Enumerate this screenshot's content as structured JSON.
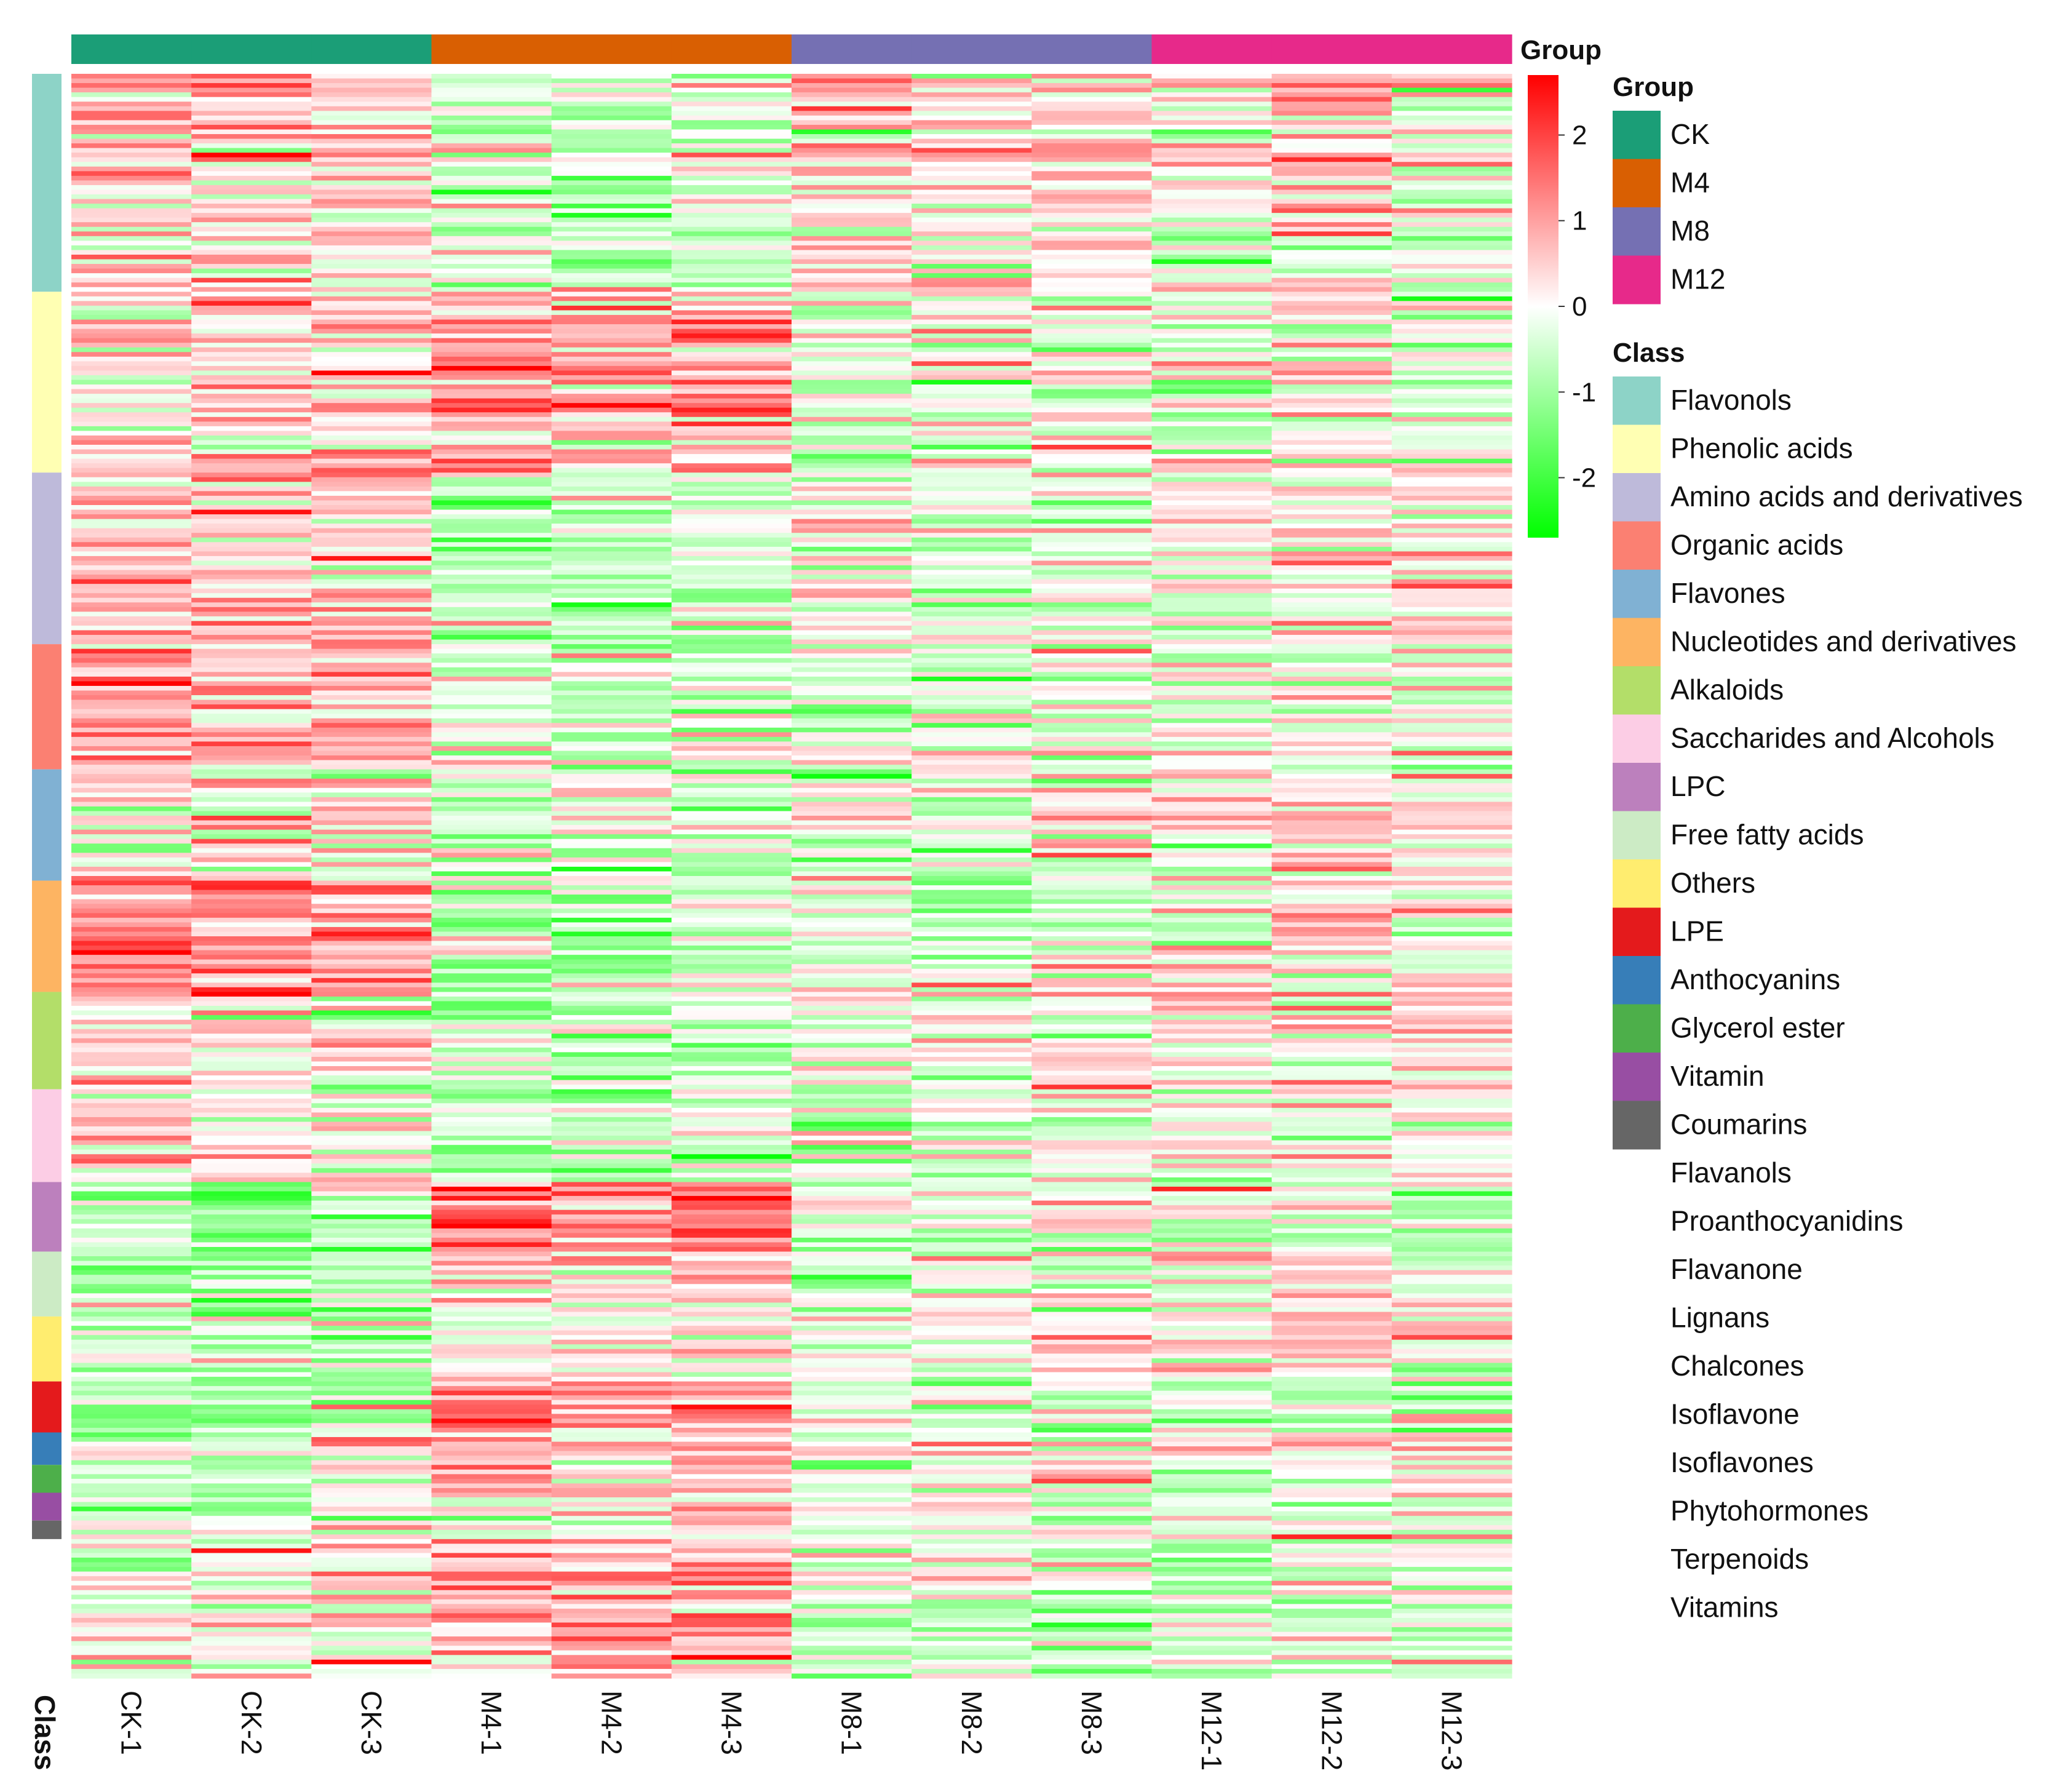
{
  "chart_data": {
    "type": "heatmap",
    "title": "",
    "xlabel": "",
    "ylabel": "",
    "samples": [
      "CK-1",
      "CK-2",
      "CK-3",
      "M4-1",
      "M4-2",
      "M4-3",
      "M8-1",
      "M8-2",
      "M8-3",
      "M12-1",
      "M12-2",
      "M12-3"
    ],
    "sample_groups": [
      "CK",
      "CK",
      "CK",
      "M4",
      "M4",
      "M4",
      "M8",
      "M8",
      "M8",
      "M12",
      "M12",
      "M12"
    ],
    "row_annotation_label": "Class",
    "color_scale": {
      "title": "Group",
      "min": -2.7,
      "max": 2.7,
      "ticks": [
        2,
        1,
        0,
        -1,
        -2
      ],
      "low_color": "#00ff00",
      "mid_color": "#ffffff",
      "high_color": "#ff0000"
    },
    "group_legend": {
      "title": "Group",
      "items": [
        {
          "label": "CK",
          "color": "#1b9e77"
        },
        {
          "label": "M4",
          "color": "#d95f02"
        },
        {
          "label": "M8",
          "color": "#7570b3"
        },
        {
          "label": "M12",
          "color": "#e7298a"
        }
      ]
    },
    "class_legend": {
      "title": "Class",
      "items": [
        {
          "label": "Flavonols",
          "color": "#8dd3c7"
        },
        {
          "label": "Phenolic acids",
          "color": "#ffffb3"
        },
        {
          "label": "Amino acids and derivatives",
          "color": "#bebada"
        },
        {
          "label": "Organic acids",
          "color": "#fb8072"
        },
        {
          "label": "Flavones",
          "color": "#80b1d3"
        },
        {
          "label": "Nucleotides and derivatives",
          "color": "#fdb462"
        },
        {
          "label": "Alkaloids",
          "color": "#b3de69"
        },
        {
          "label": "Saccharides and Alcohols",
          "color": "#fccde5"
        },
        {
          "label": "LPC",
          "color": "#bc80bd"
        },
        {
          "label": "Free fatty acids",
          "color": "#ccebc5"
        },
        {
          "label": "Others",
          "color": "#ffed6f"
        },
        {
          "label": "LPE",
          "color": "#e41a1c"
        },
        {
          "label": "Anthocyanins",
          "color": "#377eb8"
        },
        {
          "label": "Glycerol ester",
          "color": "#4daf4a"
        },
        {
          "label": "Vitamin",
          "color": "#984ea3"
        },
        {
          "label": "Coumarins",
          "color": "#666666"
        },
        {
          "label": "Flavanols",
          "color": ""
        },
        {
          "label": "Proanthocyanidins",
          "color": ""
        },
        {
          "label": "Flavanone",
          "color": ""
        },
        {
          "label": "Lignans",
          "color": ""
        },
        {
          "label": "Chalcones",
          "color": ""
        },
        {
          "label": "Isoflavone",
          "color": ""
        },
        {
          "label": "Isoflavones",
          "color": ""
        },
        {
          "label": "Phytohormones",
          "color": ""
        },
        {
          "label": "Terpenoids",
          "color": ""
        },
        {
          "label": "Vitamins",
          "color": ""
        }
      ]
    },
    "row_classes": [
      {
        "class": "Flavonols",
        "rows": 47,
        "profile": [
          0.5,
          0.5,
          0.3,
          -0.4,
          -0.5,
          -0.4,
          0.5,
          0.1,
          0.3,
          -0.1,
          0.3,
          0.0
        ]
      },
      {
        "class": "Phenolic acids",
        "rows": 39,
        "profile": [
          0.4,
          0.5,
          0.5,
          0.8,
          0.7,
          0.8,
          -0.3,
          -0.2,
          -0.1,
          -0.4,
          -0.1,
          -0.2
        ]
      },
      {
        "class": "Amino acids and derivatives",
        "rows": 37,
        "profile": [
          0.6,
          0.6,
          0.6,
          -0.6,
          -0.6,
          -0.3,
          0.1,
          -0.3,
          -0.1,
          0.2,
          0.3,
          0.2
        ]
      },
      {
        "class": "Organic acids",
        "rows": 27,
        "profile": [
          0.8,
          0.9,
          0.6,
          -0.2,
          -0.4,
          -0.4,
          -0.2,
          -0.4,
          -0.3,
          -0.3,
          -0.2,
          0.0
        ]
      },
      {
        "class": "Flavones",
        "rows": 24,
        "profile": [
          0.4,
          0.2,
          0.3,
          -0.4,
          -0.4,
          -0.3,
          0.0,
          -0.3,
          0.0,
          0.1,
          0.4,
          0.1
        ]
      },
      {
        "class": "Nucleotides and derivatives",
        "rows": 24,
        "profile": [
          1.2,
          1.1,
          1.0,
          -0.6,
          -0.7,
          -0.5,
          -0.2,
          -0.4,
          -0.3,
          0.1,
          0.1,
          -0.2
        ]
      },
      {
        "class": "Alkaloids",
        "rows": 21,
        "profile": [
          0.3,
          0.2,
          0.2,
          -0.5,
          -0.6,
          -0.5,
          -0.2,
          -0.2,
          -0.1,
          0.3,
          0.3,
          0.2
        ]
      },
      {
        "class": "Saccharides and Alcohols",
        "rows": 20,
        "profile": [
          0.5,
          0.3,
          0.3,
          -0.4,
          -0.6,
          -0.5,
          -0.1,
          -0.2,
          0.0,
          0.0,
          0.1,
          0.0
        ]
      },
      {
        "class": "LPC",
        "rows": 15,
        "profile": [
          -0.8,
          -0.8,
          -0.8,
          1.5,
          1.3,
          1.4,
          -0.3,
          -0.4,
          -0.3,
          -0.4,
          -0.4,
          -0.3
        ]
      },
      {
        "class": "Free fatty acids",
        "rows": 14,
        "profile": [
          -0.6,
          -0.7,
          -0.6,
          0.4,
          0.3,
          0.4,
          -0.1,
          0.0,
          0.1,
          0.2,
          0.2,
          0.1
        ]
      },
      {
        "class": "Others",
        "rows": 14,
        "profile": [
          -0.4,
          -0.4,
          -0.5,
          0.2,
          0.1,
          0.0,
          0.0,
          0.1,
          0.3,
          0.2,
          0.1,
          0.2
        ]
      },
      {
        "class": "LPE",
        "rows": 11,
        "profile": [
          -0.6,
          -0.6,
          -0.6,
          1.6,
          1.3,
          1.5,
          -0.3,
          -0.4,
          -0.3,
          -0.4,
          -0.4,
          -0.4
        ]
      },
      {
        "class": "Anthocyanins",
        "rows": 7,
        "profile": [
          -0.3,
          -0.4,
          -0.3,
          0.6,
          0.4,
          0.5,
          -0.1,
          -0.2,
          -0.1,
          -0.1,
          0.0,
          0.1
        ]
      },
      {
        "class": "Glycerol ester",
        "rows": 6,
        "profile": [
          -0.3,
          -0.3,
          -0.2,
          0.9,
          0.6,
          0.7,
          -0.2,
          -0.2,
          -0.1,
          -0.1,
          0.0,
          0.1
        ]
      },
      {
        "class": "Vitamin",
        "rows": 6,
        "profile": [
          -0.2,
          -0.2,
          -0.2,
          0.5,
          0.5,
          0.4,
          -0.2,
          -0.2,
          -0.1,
          -0.1,
          0.1,
          0.0
        ]
      },
      {
        "class": "Coumarins",
        "rows": 4,
        "profile": [
          -0.2,
          -0.2,
          -0.1,
          0.4,
          0.3,
          0.3,
          -0.1,
          -0.1,
          0.0,
          -0.1,
          0.1,
          0.0
        ]
      },
      {
        "class": "Flavanols",
        "rows": 3,
        "profile": [
          0.1,
          0.1,
          0.2,
          0.9,
          0.9,
          0.8,
          -0.1,
          -0.2,
          -0.1,
          -0.5,
          -0.3,
          -0.2
        ]
      },
      {
        "class": "Proanthocyanidins",
        "rows": 3,
        "profile": [
          0.0,
          0.1,
          0.2,
          0.9,
          1.0,
          0.9,
          -0.1,
          -0.1,
          -0.2,
          -0.5,
          -0.3,
          -0.3
        ]
      },
      {
        "class": "Flavanone",
        "rows": 3,
        "profile": [
          0.0,
          0.1,
          0.1,
          1.0,
          0.9,
          0.9,
          -0.1,
          -0.1,
          -0.2,
          -0.5,
          -0.4,
          -0.3
        ]
      },
      {
        "class": "Lignans",
        "rows": 3,
        "profile": [
          0.1,
          0.2,
          0.2,
          0.9,
          1.0,
          0.9,
          -0.2,
          -0.2,
          -0.1,
          -0.4,
          -0.3,
          -0.2
        ]
      },
      {
        "class": "Chalcones",
        "rows": 3,
        "profile": [
          0.1,
          0.1,
          0.2,
          0.9,
          0.9,
          0.9,
          -0.1,
          -0.2,
          -0.2,
          -0.5,
          -0.4,
          -0.3
        ]
      },
      {
        "class": "Isoflavone",
        "rows": 3,
        "profile": [
          0.2,
          0.1,
          0.2,
          1.0,
          0.9,
          1.0,
          -0.2,
          -0.1,
          -0.2,
          -0.5,
          -0.3,
          -0.3
        ]
      },
      {
        "class": "Isoflavones",
        "rows": 3,
        "profile": [
          0.1,
          0.2,
          0.1,
          0.9,
          1.0,
          0.8,
          -0.1,
          -0.1,
          -0.2,
          -0.4,
          -0.4,
          -0.2
        ]
      },
      {
        "class": "Phytohormones",
        "rows": 3,
        "profile": [
          0.2,
          0.1,
          0.1,
          0.8,
          0.9,
          0.9,
          -0.2,
          -0.2,
          -0.1,
          -0.5,
          -0.3,
          -0.3
        ]
      },
      {
        "class": "Terpenoids",
        "rows": 3,
        "profile": [
          0.1,
          0.2,
          0.2,
          1.0,
          0.9,
          0.9,
          -0.1,
          -0.2,
          -0.2,
          -0.4,
          -0.3,
          -0.3
        ]
      },
      {
        "class": "Vitamins",
        "rows": 3,
        "profile": [
          0.1,
          0.1,
          0.2,
          0.9,
          0.9,
          1.0,
          -0.2,
          -0.1,
          -0.1,
          -0.5,
          -0.4,
          -0.3
        ]
      }
    ],
    "cell_noise": 0.7,
    "random_seed": 20240517
  }
}
